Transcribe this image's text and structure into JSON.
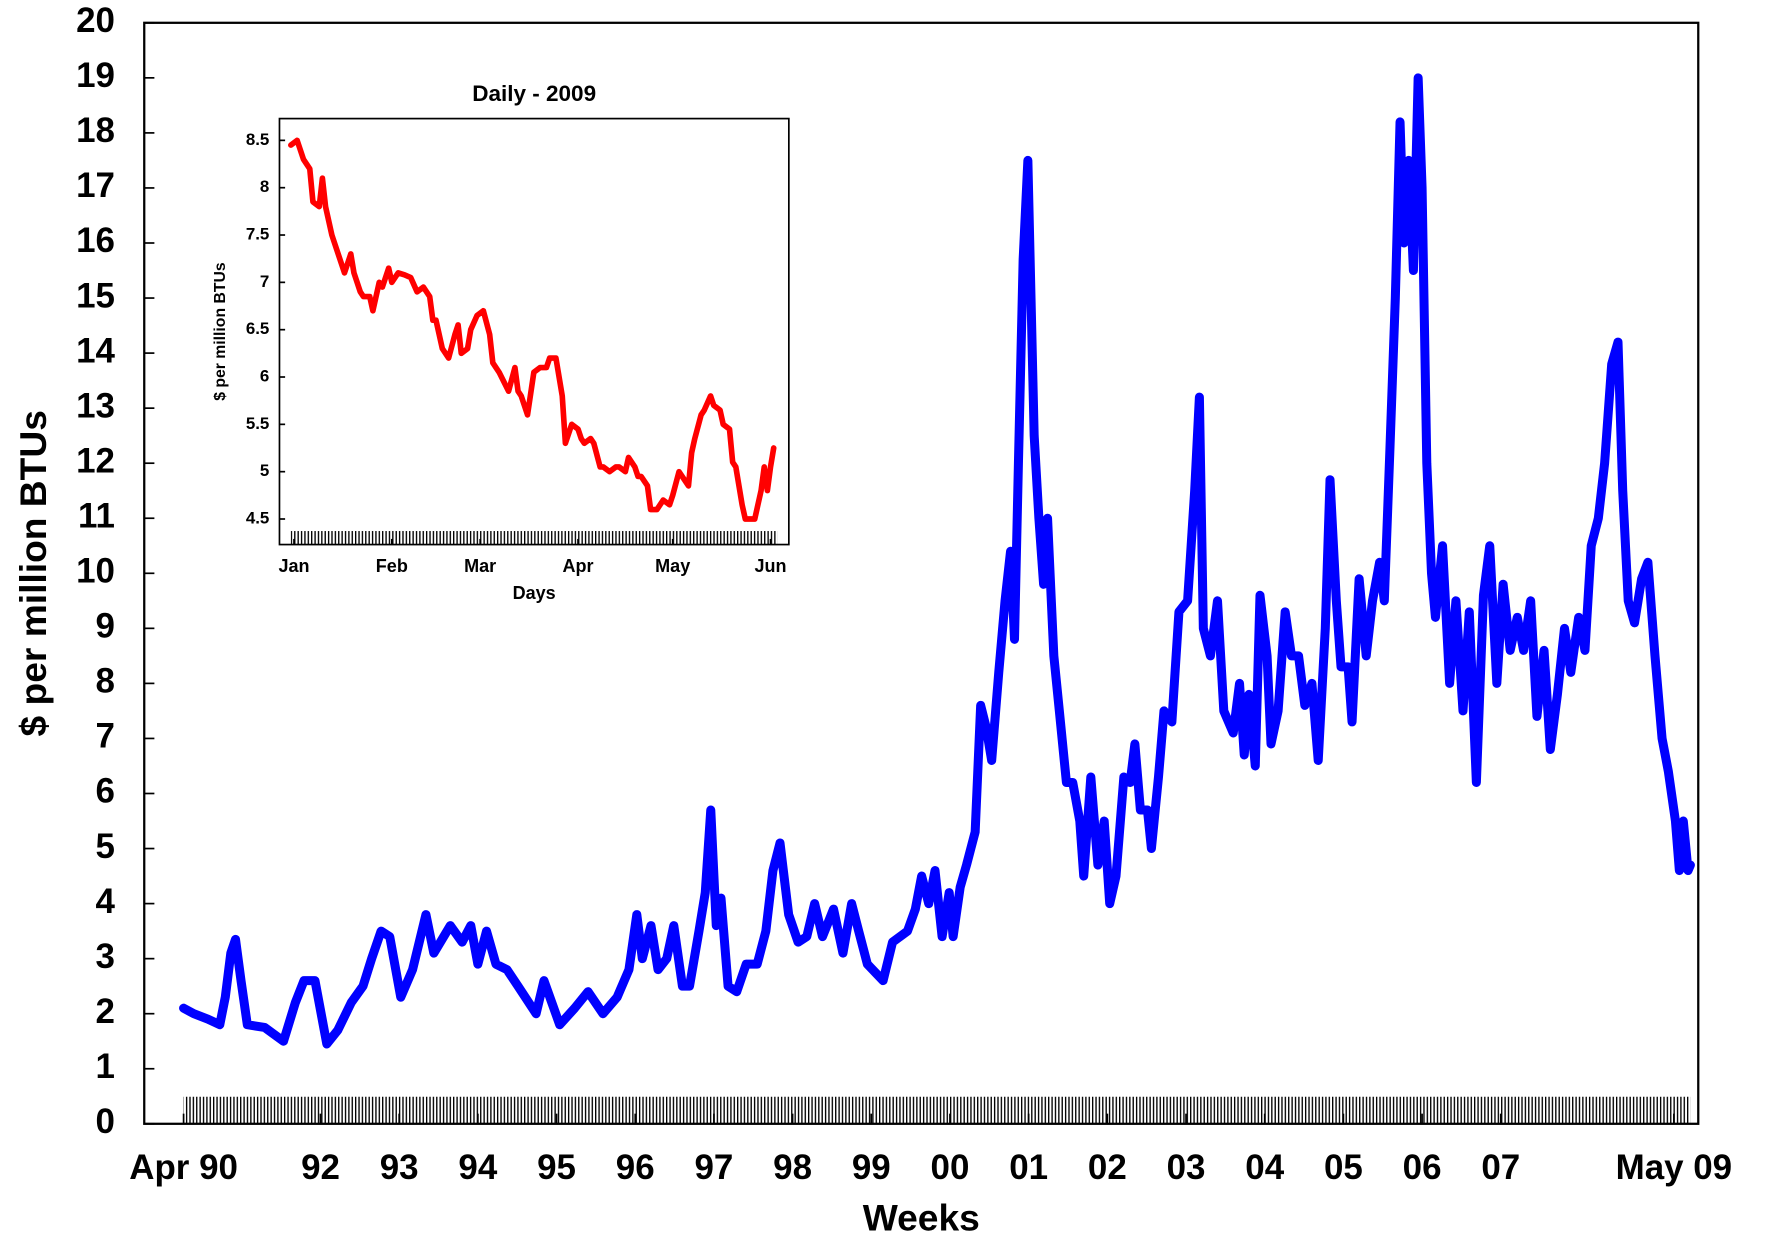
{
  "chart_data": [
    {
      "type": "line",
      "x_label": "Weeks",
      "y_label": "$ per million BTUs",
      "color": "#0000ff",
      "xlim": [
        1989.76,
        2009.51
      ],
      "ylim": [
        0,
        20
      ],
      "xticks": [
        {
          "value": 1990.26,
          "label": "Apr 90"
        },
        {
          "value": 1992,
          "label": "92"
        },
        {
          "value": 1993,
          "label": "93"
        },
        {
          "value": 1994,
          "label": "94"
        },
        {
          "value": 1995,
          "label": "95"
        },
        {
          "value": 1996,
          "label": "96"
        },
        {
          "value": 1997,
          "label": "97"
        },
        {
          "value": 1998,
          "label": "98"
        },
        {
          "value": 1999,
          "label": "99"
        },
        {
          "value": 2000,
          "label": "00"
        },
        {
          "value": 2001,
          "label": "01"
        },
        {
          "value": 2002,
          "label": "02"
        },
        {
          "value": 2003,
          "label": "03"
        },
        {
          "value": 2004,
          "label": "04"
        },
        {
          "value": 2005,
          "label": "05"
        },
        {
          "value": 2006,
          "label": "06"
        },
        {
          "value": 2007,
          "label": "07"
        },
        {
          "value": 2009.2,
          "label": "May 09"
        }
      ],
      "yticks": [
        0,
        1,
        2,
        3,
        4,
        5,
        6,
        7,
        8,
        9,
        10,
        11,
        12,
        13,
        14,
        15,
        16,
        17,
        18,
        19,
        20
      ],
      "x": [
        1990.26,
        1990.39,
        1990.57,
        1990.72,
        1990.79,
        1990.86,
        1990.92,
        1990.99,
        1991.07,
        1991.29,
        1991.53,
        1991.68,
        1991.79,
        1991.93,
        1992.08,
        1992.22,
        1992.39,
        1992.54,
        1992.65,
        1992.77,
        1992.88,
        1993.02,
        1993.17,
        1993.34,
        1993.44,
        1993.65,
        1993.8,
        1993.91,
        1994.0,
        1994.11,
        1994.23,
        1994.37,
        1994.51,
        1994.74,
        1994.84,
        1994.94,
        1995.04,
        1995.23,
        1995.4,
        1995.59,
        1995.77,
        1995.92,
        1996.02,
        1996.09,
        1996.2,
        1996.29,
        1996.4,
        1996.49,
        1996.6,
        1996.69,
        1996.81,
        1996.89,
        1996.96,
        1997.03,
        1997.09,
        1997.18,
        1997.29,
        1997.41,
        1997.55,
        1997.66,
        1997.75,
        1997.84,
        1997.95,
        1998.07,
        1998.18,
        1998.28,
        1998.38,
        1998.52,
        1998.64,
        1998.75,
        1998.84,
        1998.95,
        1999.15,
        1999.27,
        1999.46,
        1999.56,
        1999.64,
        1999.73,
        1999.81,
        1999.9,
        1999.99,
        2000.04,
        2000.13,
        2000.21,
        2000.32,
        2000.39,
        2000.46,
        2000.53,
        2000.62,
        2000.7,
        2000.77,
        2000.82,
        2000.87,
        2000.93,
        2000.99,
        2001.03,
        2001.07,
        2001.13,
        2001.19,
        2001.24,
        2001.32,
        2001.39,
        2001.48,
        2001.56,
        2001.65,
        2001.7,
        2001.79,
        2001.88,
        2001.96,
        2002.03,
        2002.11,
        2002.21,
        2002.29,
        2002.35,
        2002.42,
        2002.51,
        2002.56,
        2002.65,
        2002.72,
        2002.82,
        2002.91,
        2003.02,
        2003.11,
        2003.17,
        2003.22,
        2003.31,
        2003.4,
        2003.48,
        2003.6,
        2003.68,
        2003.74,
        2003.8,
        2003.88,
        2003.94,
        2004.03,
        2004.08,
        2004.17,
        2004.26,
        2004.34,
        2004.43,
        2004.51,
        2004.6,
        2004.68,
        2004.77,
        2004.83,
        2004.91,
        2004.97,
        2005.06,
        2005.11,
        2005.2,
        2005.29,
        2005.37,
        2005.46,
        2005.52,
        2005.59,
        2005.66,
        2005.72,
        2005.77,
        2005.83,
        2005.89,
        2005.95,
        2006.0,
        2006.06,
        2006.12,
        2006.17,
        2006.26,
        2006.35,
        2006.43,
        2006.52,
        2006.6,
        2006.69,
        2006.78,
        2006.86,
        2006.95,
        2007.03,
        2007.12,
        2007.21,
        2007.29,
        2007.38,
        2007.46,
        2007.55,
        2007.63,
        2007.72,
        2007.81,
        2007.89,
        2007.99,
        2008.07,
        2008.15,
        2008.24,
        2008.32,
        2008.41,
        2008.49,
        2008.55,
        2008.62,
        2008.7,
        2008.79,
        2008.87,
        2008.96,
        2009.05,
        2009.13,
        2009.22,
        2009.27,
        2009.32,
        2009.38,
        2009.41
      ],
      "values": [
        2.1,
        2.0,
        1.9,
        1.8,
        2.3,
        3.1,
        3.35,
        2.6,
        1.8,
        1.75,
        1.5,
        2.2,
        2.6,
        2.6,
        1.45,
        1.7,
        2.2,
        2.5,
        3.0,
        3.5,
        3.4,
        2.3,
        2.8,
        3.8,
        3.1,
        3.6,
        3.3,
        3.6,
        2.9,
        3.5,
        2.9,
        2.8,
        2.5,
        2.0,
        2.6,
        2.2,
        1.8,
        2.1,
        2.4,
        2.0,
        2.3,
        2.8,
        3.8,
        3.0,
        3.6,
        2.8,
        3.0,
        3.6,
        2.5,
        2.5,
        3.5,
        4.2,
        5.7,
        3.6,
        4.1,
        2.5,
        2.4,
        2.9,
        2.9,
        3.5,
        4.6,
        5.1,
        3.8,
        3.3,
        3.4,
        4.0,
        3.4,
        3.9,
        3.1,
        4.0,
        3.5,
        2.9,
        2.6,
        3.3,
        3.5,
        3.9,
        4.5,
        4.0,
        4.6,
        3.4,
        4.2,
        3.4,
        4.3,
        4.7,
        5.3,
        7.6,
        7.2,
        6.6,
        8.2,
        9.5,
        10.4,
        8.8,
        12.0,
        15.7,
        17.5,
        15.0,
        12.5,
        11.0,
        9.8,
        11.0,
        8.5,
        7.5,
        6.2,
        6.2,
        5.5,
        4.5,
        6.3,
        4.7,
        5.5,
        4.0,
        4.5,
        6.3,
        6.2,
        6.9,
        5.7,
        5.7,
        5.0,
        6.3,
        7.5,
        7.3,
        9.3,
        9.5,
        11.5,
        13.2,
        9.0,
        8.5,
        9.5,
        7.5,
        7.1,
        8.0,
        6.7,
        7.8,
        6.5,
        9.6,
        8.5,
        6.9,
        7.5,
        9.3,
        8.5,
        8.5,
        7.6,
        8.0,
        6.6,
        9.0,
        11.7,
        9.5,
        8.3,
        8.3,
        7.3,
        9.9,
        8.5,
        9.5,
        10.2,
        9.5,
        12.2,
        15.0,
        18.2,
        16.0,
        17.5,
        15.5,
        19.0,
        17.0,
        12.0,
        10.0,
        9.2,
        10.5,
        8.0,
        9.5,
        7.5,
        9.3,
        6.2,
        9.6,
        10.5,
        8.0,
        9.8,
        8.6,
        9.2,
        8.6,
        9.5,
        7.4,
        8.6,
        6.8,
        7.8,
        9.0,
        8.2,
        9.2,
        8.6,
        10.5,
        11.0,
        12.0,
        13.8,
        14.2,
        11.5,
        9.5,
        9.1,
        9.9,
        10.2,
        8.5,
        7.0,
        6.4,
        5.5,
        4.6,
        5.5,
        4.6,
        4.7
      ]
    },
    {
      "type": "line",
      "title": "Daily - 2009",
      "x_label": "Days",
      "y_label": "$ per million BTUs",
      "color": "#ff0000",
      "xlim": [
        -3.6,
        157.8
      ],
      "ylim": [
        4.23,
        8.73
      ],
      "xticks": [
        {
          "value": 1,
          "label": "Jan"
        },
        {
          "value": 32,
          "label": "Feb"
        },
        {
          "value": 60,
          "label": "Mar"
        },
        {
          "value": 91,
          "label": "Apr"
        },
        {
          "value": 121,
          "label": "May"
        },
        {
          "value": 152,
          "label": "Jun"
        }
      ],
      "yticks": [
        4.5,
        5,
        5.5,
        6,
        6.5,
        7,
        7.5,
        8,
        8.5
      ],
      "x": [
        0,
        2,
        4,
        6,
        7,
        9,
        10,
        11,
        13,
        14,
        16,
        17,
        19,
        20,
        22,
        23,
        25,
        26,
        28,
        29,
        31,
        32,
        34,
        36,
        38,
        40,
        42,
        44,
        45,
        46,
        48,
        50,
        52,
        53,
        54,
        56,
        57,
        59,
        61,
        63,
        64,
        66,
        69,
        71,
        72,
        73,
        75,
        77,
        79,
        81,
        82,
        84,
        86,
        87,
        89,
        91,
        92,
        93,
        95,
        96,
        98,
        99,
        101,
        103,
        104,
        106,
        107,
        109,
        110,
        111,
        113,
        114,
        116,
        118,
        120,
        121,
        123,
        126,
        127,
        128,
        130,
        131,
        133,
        134,
        136,
        137,
        139,
        140,
        141,
        143,
        144,
        146,
        147,
        149,
        150,
        151,
        152,
        153
      ],
      "values": [
        8.45,
        8.5,
        8.3,
        8.2,
        7.85,
        7.8,
        8.1,
        7.8,
        7.5,
        7.4,
        7.2,
        7.1,
        7.3,
        7.1,
        6.9,
        6.85,
        6.85,
        6.7,
        7.0,
        6.95,
        7.15,
        7.0,
        7.1,
        7.08,
        7.05,
        6.9,
        6.95,
        6.85,
        6.6,
        6.6,
        6.3,
        6.2,
        6.45,
        6.55,
        6.25,
        6.3,
        6.5,
        6.65,
        6.7,
        6.45,
        6.15,
        6.05,
        5.85,
        6.1,
        5.85,
        5.8,
        5.6,
        6.05,
        6.1,
        6.1,
        6.2,
        6.2,
        5.8,
        5.3,
        5.5,
        5.45,
        5.35,
        5.3,
        5.35,
        5.3,
        5.05,
        5.05,
        5.0,
        5.05,
        5.05,
        5.0,
        5.15,
        5.05,
        4.95,
        4.95,
        4.85,
        4.6,
        4.6,
        4.7,
        4.65,
        4.75,
        5.0,
        4.85,
        5.2,
        5.35,
        5.6,
        5.65,
        5.8,
        5.7,
        5.65,
        5.5,
        5.45,
        5.1,
        5.05,
        4.65,
        4.5,
        4.5,
        4.5,
        4.8,
        5.05,
        4.8,
        5.05,
        5.25
      ]
    }
  ]
}
